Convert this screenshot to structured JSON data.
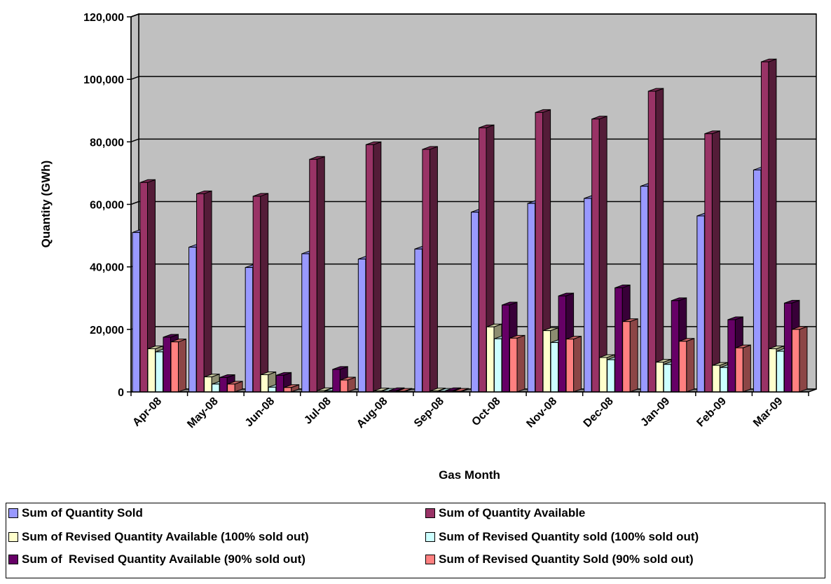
{
  "chart_data": {
    "type": "bar",
    "title": "",
    "xlabel": "Gas Month",
    "ylabel": "Quantity (GWh)",
    "ylim": [
      0,
      120000
    ],
    "yticks": [
      0,
      20000,
      40000,
      60000,
      80000,
      100000,
      120000
    ],
    "ytick_labels": [
      "0",
      "20,000",
      "40,000",
      "60,000",
      "80,000",
      "100,000",
      "120,000"
    ],
    "grid": true,
    "legend_position": "bottom",
    "categories": [
      "Apr-08",
      "May-08",
      "Jun-08",
      "Jul-08",
      "Aug-08",
      "Sep-08",
      "Oct-08",
      "Nov-08",
      "Dec-08",
      "Jan-09",
      "Feb-09",
      "Mar-09"
    ],
    "series": [
      {
        "name": "Sum of Quantity Sold",
        "color": "#9999FF",
        "values": [
          51000,
          46300,
          39800,
          44200,
          42500,
          45700,
          57500,
          60300,
          61900,
          65800,
          56300,
          71000
        ]
      },
      {
        "name": "Sum of Quantity Available",
        "color": "#993366",
        "values": [
          67000,
          63400,
          62600,
          74400,
          79100,
          77600,
          84500,
          89400,
          87300,
          96200,
          82600,
          105600
        ]
      },
      {
        "name": "Sum of Revised Quantity Available (100% sold out)",
        "color": "#FFFFCC",
        "values": [
          13800,
          4800,
          5500,
          400,
          300,
          300,
          20800,
          19600,
          11000,
          9500,
          8500,
          13800
        ]
      },
      {
        "name": "Sum of Revised Quantity sold (100% sold out)",
        "color": "#CCFFFF",
        "values": [
          12800,
          2500,
          1500,
          300,
          200,
          200,
          17000,
          15800,
          10300,
          8800,
          7800,
          13000
        ]
      },
      {
        "name": "Sum of  Revised Quantity Available (90% sold out)",
        "color": "#660066",
        "values": [
          17500,
          4600,
          5300,
          7200,
          400,
          400,
          27800,
          30700,
          33300,
          29200,
          23100,
          28400
        ]
      },
      {
        "name": "Sum of Revised Quantity Sold (90% sold out)",
        "color": "#FF8080",
        "values": [
          16000,
          2500,
          1400,
          3800,
          200,
          200,
          17200,
          16900,
          22500,
          16200,
          14100,
          20000
        ]
      }
    ]
  }
}
